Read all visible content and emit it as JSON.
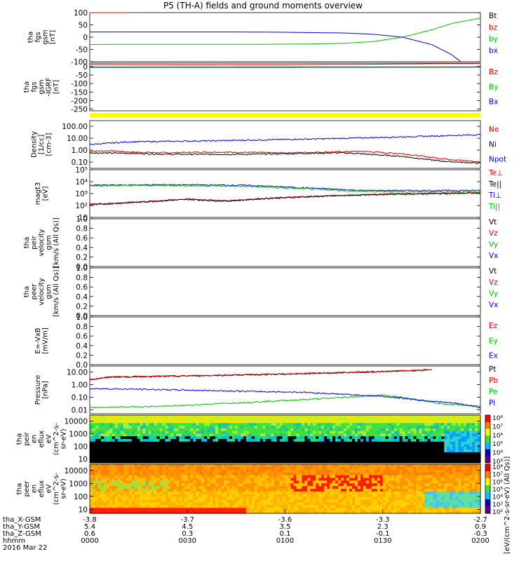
{
  "title": "P5 (TH-A) fields and ground moments overview",
  "colors": {
    "black": "#000000",
    "red": "#e00000",
    "green": "#00c000",
    "blue": "#0000e0",
    "yellow": "#ffff00"
  },
  "chart_data": [
    {
      "panel": "fgs_gsm",
      "type": "line",
      "ylabel": [
        "tha",
        "fgs",
        "gsm",
        "[nT]"
      ],
      "ylim": [
        -100,
        100
      ],
      "yticks": [
        "100",
        "50",
        "0",
        "-50",
        "-100"
      ],
      "legend": [
        "Bt",
        "bz",
        "by",
        "bx"
      ],
      "series": [
        {
          "name": "Bt",
          "color": "black",
          "x": [
            0,
            200
          ],
          "values": [
            null,
            null
          ]
        },
        {
          "name": "bz",
          "color": "red",
          "x": [
            0,
            10,
            20
          ],
          "values": [
            102,
            105,
            108
          ]
        },
        {
          "name": "by",
          "color": "green",
          "x": [
            0,
            20,
            60,
            90,
            110,
            130,
            145,
            160,
            175,
            185,
            200
          ],
          "values": [
            -30,
            -29,
            -29,
            -29,
            -28,
            -25,
            -18,
            0,
            30,
            55,
            78
          ]
        },
        {
          "name": "bx",
          "color": "blue",
          "x": [
            0,
            20,
            50,
            80,
            100,
            110,
            120,
            130,
            145,
            160,
            175,
            185,
            190
          ],
          "values": [
            21,
            21,
            21,
            21,
            20,
            19,
            18,
            17,
            12,
            0,
            -30,
            -70,
            -100
          ]
        }
      ]
    },
    {
      "panel": "fgs_gsm_dB",
      "type": "line",
      "ylabel": [
        "tha",
        "fgs",
        "gsm",
        "-IGRF",
        "[nT]"
      ],
      "ylim": [
        -260,
        20
      ],
      "yticks": [
        "50",
        "0",
        "-50",
        "-100",
        "-150",
        "-200",
        "-250"
      ],
      "legend": [
        "Bz",
        "By",
        "Bx"
      ],
      "series": [
        {
          "name": "Bz",
          "color": "red",
          "x": [
            0,
            50,
            100,
            150,
            200
          ],
          "values": [
            12,
            10,
            11,
            14,
            18
          ]
        },
        {
          "name": "By",
          "color": "green",
          "x": [
            0,
            100,
            200
          ],
          "values": [
            -5,
            -5,
            -4
          ]
        },
        {
          "name": "Bx",
          "color": "blue",
          "x": [
            0,
            100,
            200
          ],
          "values": [
            -4,
            -3,
            -3
          ]
        }
      ]
    },
    {
      "panel": "density",
      "type": "line",
      "scale": "log",
      "ylabel": [
        "Density",
        "[1/cc]",
        "[cm-3]"
      ],
      "ylim": [
        0.03,
        300
      ],
      "yticks": [
        "100.00",
        "10.00",
        "1.00",
        "0.10",
        "0.01"
      ],
      "legend": [
        "Ne",
        "Ni",
        "Npot"
      ],
      "series": [
        {
          "name": "Ne",
          "color": "red",
          "x": [
            0,
            10,
            20,
            40,
            60,
            100,
            140,
            160,
            180,
            200
          ],
          "values": [
            0.8,
            0.9,
            0.7,
            0.6,
            0.7,
            0.6,
            0.8,
            0.5,
            0.2,
            0.1
          ]
        },
        {
          "name": "Ni",
          "color": "black",
          "x": [
            0,
            20,
            40,
            80,
            130,
            160,
            180,
            200
          ],
          "values": [
            0.6,
            0.55,
            0.45,
            0.45,
            0.6,
            0.3,
            0.12,
            0.08
          ]
        },
        {
          "name": "Npot",
          "color": "blue",
          "x": [
            0,
            20,
            60,
            120,
            160,
            200
          ],
          "values": [
            3,
            5,
            6,
            9,
            13,
            20
          ]
        }
      ]
    },
    {
      "panel": "magt3",
      "type": "line",
      "scale": "log",
      "ylabel": [
        "magt3",
        "[eV]"
      ],
      "ylim": [
        10,
        100000
      ],
      "yticks": [
        "10",
        "10²",
        "10³",
        "10⁴",
        "10⁵"
      ],
      "legend": [
        "Te⊥",
        "Te||",
        "Ti⊥",
        "Ti||"
      ],
      "series": [
        {
          "name": "Te⊥",
          "color": "red",
          "x": [
            0,
            20,
            50,
            70,
            90,
            110,
            130,
            150,
            200
          ],
          "values": [
            130,
            180,
            350,
            250,
            400,
            550,
            700,
            900,
            1200
          ]
        },
        {
          "name": "Te||",
          "color": "black",
          "x": [
            0,
            20,
            50,
            70,
            90,
            110,
            130,
            150,
            200
          ],
          "values": [
            110,
            170,
            320,
            230,
            380,
            520,
            680,
            850,
            1100
          ]
        },
        {
          "name": "Ti⊥",
          "color": "blue",
          "x": [
            0,
            40,
            80,
            110,
            140,
            170,
            200
          ],
          "values": [
            5000,
            5500,
            5000,
            3000,
            1800,
            1800,
            1800
          ]
        },
        {
          "name": "Ti||",
          "color": "green",
          "x": [
            0,
            40,
            80,
            110,
            140,
            170,
            200
          ],
          "values": [
            4500,
            4800,
            4000,
            2500,
            1500,
            1400,
            1400
          ]
        }
      ]
    },
    {
      "panel": "peir_velocity",
      "type": "line",
      "ylabel": [
        "tha",
        "peir",
        "velocity",
        "gsm",
        "[km/s (All Qs)]"
      ],
      "ylim": [
        0,
        1
      ],
      "yticks": [
        "1.0",
        "0.8",
        "0.6",
        "0.4",
        "0.2",
        "0.0"
      ],
      "legend": [
        "Vt",
        "Vz",
        "Vy",
        "Vx"
      ],
      "series": []
    },
    {
      "panel": "peer_velocity",
      "type": "line",
      "ylabel": [
        "tha",
        "peer",
        "velocity",
        "gsm",
        "[km/s (All Qs)]"
      ],
      "ylim": [
        0,
        1
      ],
      "yticks": [
        "1.0",
        "0.8",
        "0.6",
        "0.4",
        "0.2",
        "0.0"
      ],
      "legend": [
        "Vt",
        "Vz",
        "Vy",
        "Vx"
      ],
      "series": []
    },
    {
      "panel": "e_field",
      "type": "line",
      "ylabel": [
        "E=-VxB",
        "[mV/m]"
      ],
      "ylim": [
        0,
        1
      ],
      "yticks": [
        "1.0",
        "0.8",
        "0.6",
        "0.4",
        "0.2",
        "0.0"
      ],
      "legend": [
        "Ez",
        "Ey",
        "Ex"
      ],
      "series": []
    },
    {
      "panel": "pressure",
      "type": "line",
      "scale": "log",
      "ylabel": [
        "Pressure",
        "[nPa]"
      ],
      "ylim": [
        0.005,
        30
      ],
      "yticks": [
        "10.00",
        "1.00",
        "0.10",
        "0.01"
      ],
      "legend": [
        "Pt",
        "Pb",
        "Pe",
        "Pi"
      ],
      "series": [
        {
          "name": "Pt",
          "color": "black",
          "x": [
            0,
            10,
            50,
            100,
            150,
            175
          ],
          "values": [
            2.5,
            4,
            5,
            7,
            11,
            15
          ]
        },
        {
          "name": "Pb",
          "color": "red",
          "x": [
            0,
            10,
            50,
            100,
            150,
            175
          ],
          "values": [
            2.5,
            4,
            5,
            7,
            11,
            15
          ]
        },
        {
          "name": "Pe",
          "color": "green",
          "x": [
            0,
            40,
            80,
            120,
            150,
            160,
            180,
            200
          ],
          "values": [
            0.015,
            0.02,
            0.04,
            0.08,
            0.15,
            0.1,
            0.03,
            0.02
          ]
        },
        {
          "name": "Pi",
          "color": "blue",
          "x": [
            0,
            40,
            80,
            110,
            150,
            170,
            190,
            200
          ],
          "values": [
            0.5,
            0.4,
            0.3,
            0.25,
            0.12,
            0.06,
            0.03,
            0.015
          ]
        }
      ]
    },
    {
      "panel": "peir_en_eflux",
      "type": "heatmap",
      "ylabel": [
        "tha",
        "peir",
        "en",
        "eflux",
        "eV",
        "(cm^2-s-",
        "sr-eV)"
      ],
      "yscale": "log",
      "ylim": [
        5,
        30000
      ],
      "yticks": [
        "10000",
        "1000",
        "100",
        "10"
      ],
      "colorbar": {
        "ticks": [
          "10⁸",
          "10⁷",
          "10⁶",
          "10⁵",
          "10⁴",
          "10³"
        ],
        "label": "[eV/(cm^2-s-sr-eV) (All Qs)]"
      }
    },
    {
      "panel": "peer_en_eflux",
      "type": "heatmap",
      "ylabel": [
        "tha",
        "peer",
        "en",
        "eflux",
        "eV",
        "(cm^2-s-",
        "sr-eV)"
      ],
      "yscale": "log",
      "ylim": [
        5,
        30000
      ],
      "yticks": [
        "10000",
        "1000",
        "100",
        "10"
      ],
      "colorbar": {
        "ticks": [
          "10⁸",
          "10⁷",
          "10⁶",
          "10⁵",
          "10⁴",
          "10³",
          "10²"
        ],
        "label": "[eV/(cm^2-s-sr-eV) (All Qs)]"
      }
    }
  ],
  "x_axis": {
    "rows": [
      {
        "label": "tha_X-GSM",
        "values": [
          "-3.8",
          "-3.7",
          "-3.6",
          "-3.3",
          "-2.7"
        ]
      },
      {
        "label": "tha_Y-GSM",
        "values": [
          "5.4",
          "4.5",
          "3.5",
          "2.3",
          "0.9"
        ]
      },
      {
        "label": "tha_Z-GSM",
        "values": [
          "0.6",
          "0.3",
          "0.1",
          "-0.1",
          "-0.3"
        ]
      },
      {
        "label": "hhmm",
        "values": [
          "0000",
          "0030",
          "0100",
          "0130",
          "0200"
        ]
      }
    ],
    "date": "2016 Mar 22"
  }
}
